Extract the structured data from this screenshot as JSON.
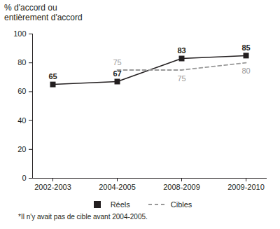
{
  "chart_data": {
    "type": "line",
    "y_label": "% d'accord ou entièrement d'accord",
    "caption": "*Il n'y avait pas de cible avant 2004-2005.",
    "categories": [
      "2002-2003",
      "2004-2005",
      "2008-2009",
      "2009-2010"
    ],
    "series": [
      {
        "name": "Réels",
        "color": "#231f20",
        "marker": "square",
        "line_style": "solid",
        "values": [
          65,
          67,
          83,
          85
        ]
      },
      {
        "name": "Cibles",
        "color": "#999999",
        "line_style": "dashed",
        "values": [
          null,
          75,
          75,
          80
        ]
      }
    ],
    "ylim": [
      0,
      100
    ],
    "yticks": [
      0,
      20,
      40,
      60,
      80,
      100
    ],
    "data_labels": true,
    "legend": "bottom",
    "grid": false
  }
}
